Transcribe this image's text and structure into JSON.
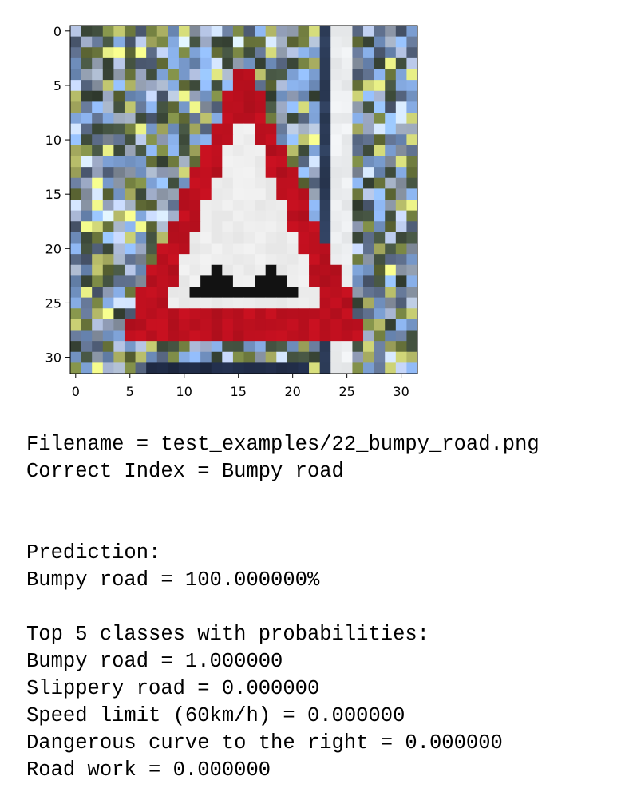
{
  "figure": {
    "title": "",
    "image_size": 32,
    "xticks": [
      0,
      5,
      10,
      15,
      20,
      25,
      30
    ],
    "yticks": [
      0,
      5,
      10,
      15,
      20,
      25,
      30
    ],
    "colors": {
      "sign_red": "#c0101f",
      "sign_white": "#f2f2f2",
      "sky_blue": "#7fa3d8",
      "foliage_olive": "#6e7a3e",
      "foliage_yellow": "#c9cf74",
      "pole_white": "#f4f6f8",
      "bump_black": "#121212"
    }
  },
  "output": {
    "filename_line": "Filename = test_examples/22_bumpy_road.png",
    "correct_line": "Correct Index = Bumpy road",
    "prediction_header": "Prediction:",
    "prediction_line": "Bumpy road = 100.000000%",
    "top5_header": "Top 5 classes with probabilities:",
    "top5": [
      {
        "text": "Bumpy road = 1.000000"
      },
      {
        "text": "Slippery road = 0.000000"
      },
      {
        "text": "Speed limit (60km/h) = 0.000000"
      },
      {
        "text": "Dangerous curve to the right = 0.000000"
      },
      {
        "text": "Road work = 0.000000"
      }
    ]
  }
}
